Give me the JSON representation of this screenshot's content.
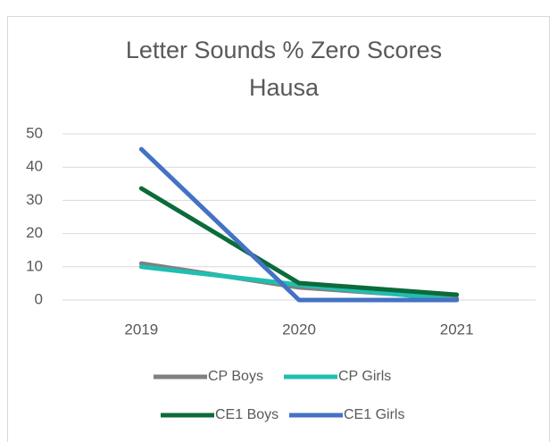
{
  "chart_data": {
    "type": "line",
    "title": [
      "Letter Sounds % Zero Scores",
      "Hausa"
    ],
    "categories": [
      "2019",
      "2020",
      "2021"
    ],
    "series": [
      {
        "name": "CP Boys",
        "color": "#808080",
        "values": [
          11,
          3.8,
          0.5
        ]
      },
      {
        "name": "CP Girls",
        "color": "#1fbfb0",
        "values": [
          10,
          4.6,
          0
        ]
      },
      {
        "name": "CE1 Boys",
        "color": "#0b6b3a",
        "values": [
          33.6,
          5.1,
          1.6
        ]
      },
      {
        "name": "CE1 Girls",
        "color": "#4472c4",
        "values": [
          45.4,
          0,
          0
        ]
      }
    ],
    "ylim": [
      0,
      50
    ],
    "yticks": [
      0,
      10,
      20,
      30,
      40,
      50
    ],
    "grid": true,
    "legend": "bottom"
  }
}
